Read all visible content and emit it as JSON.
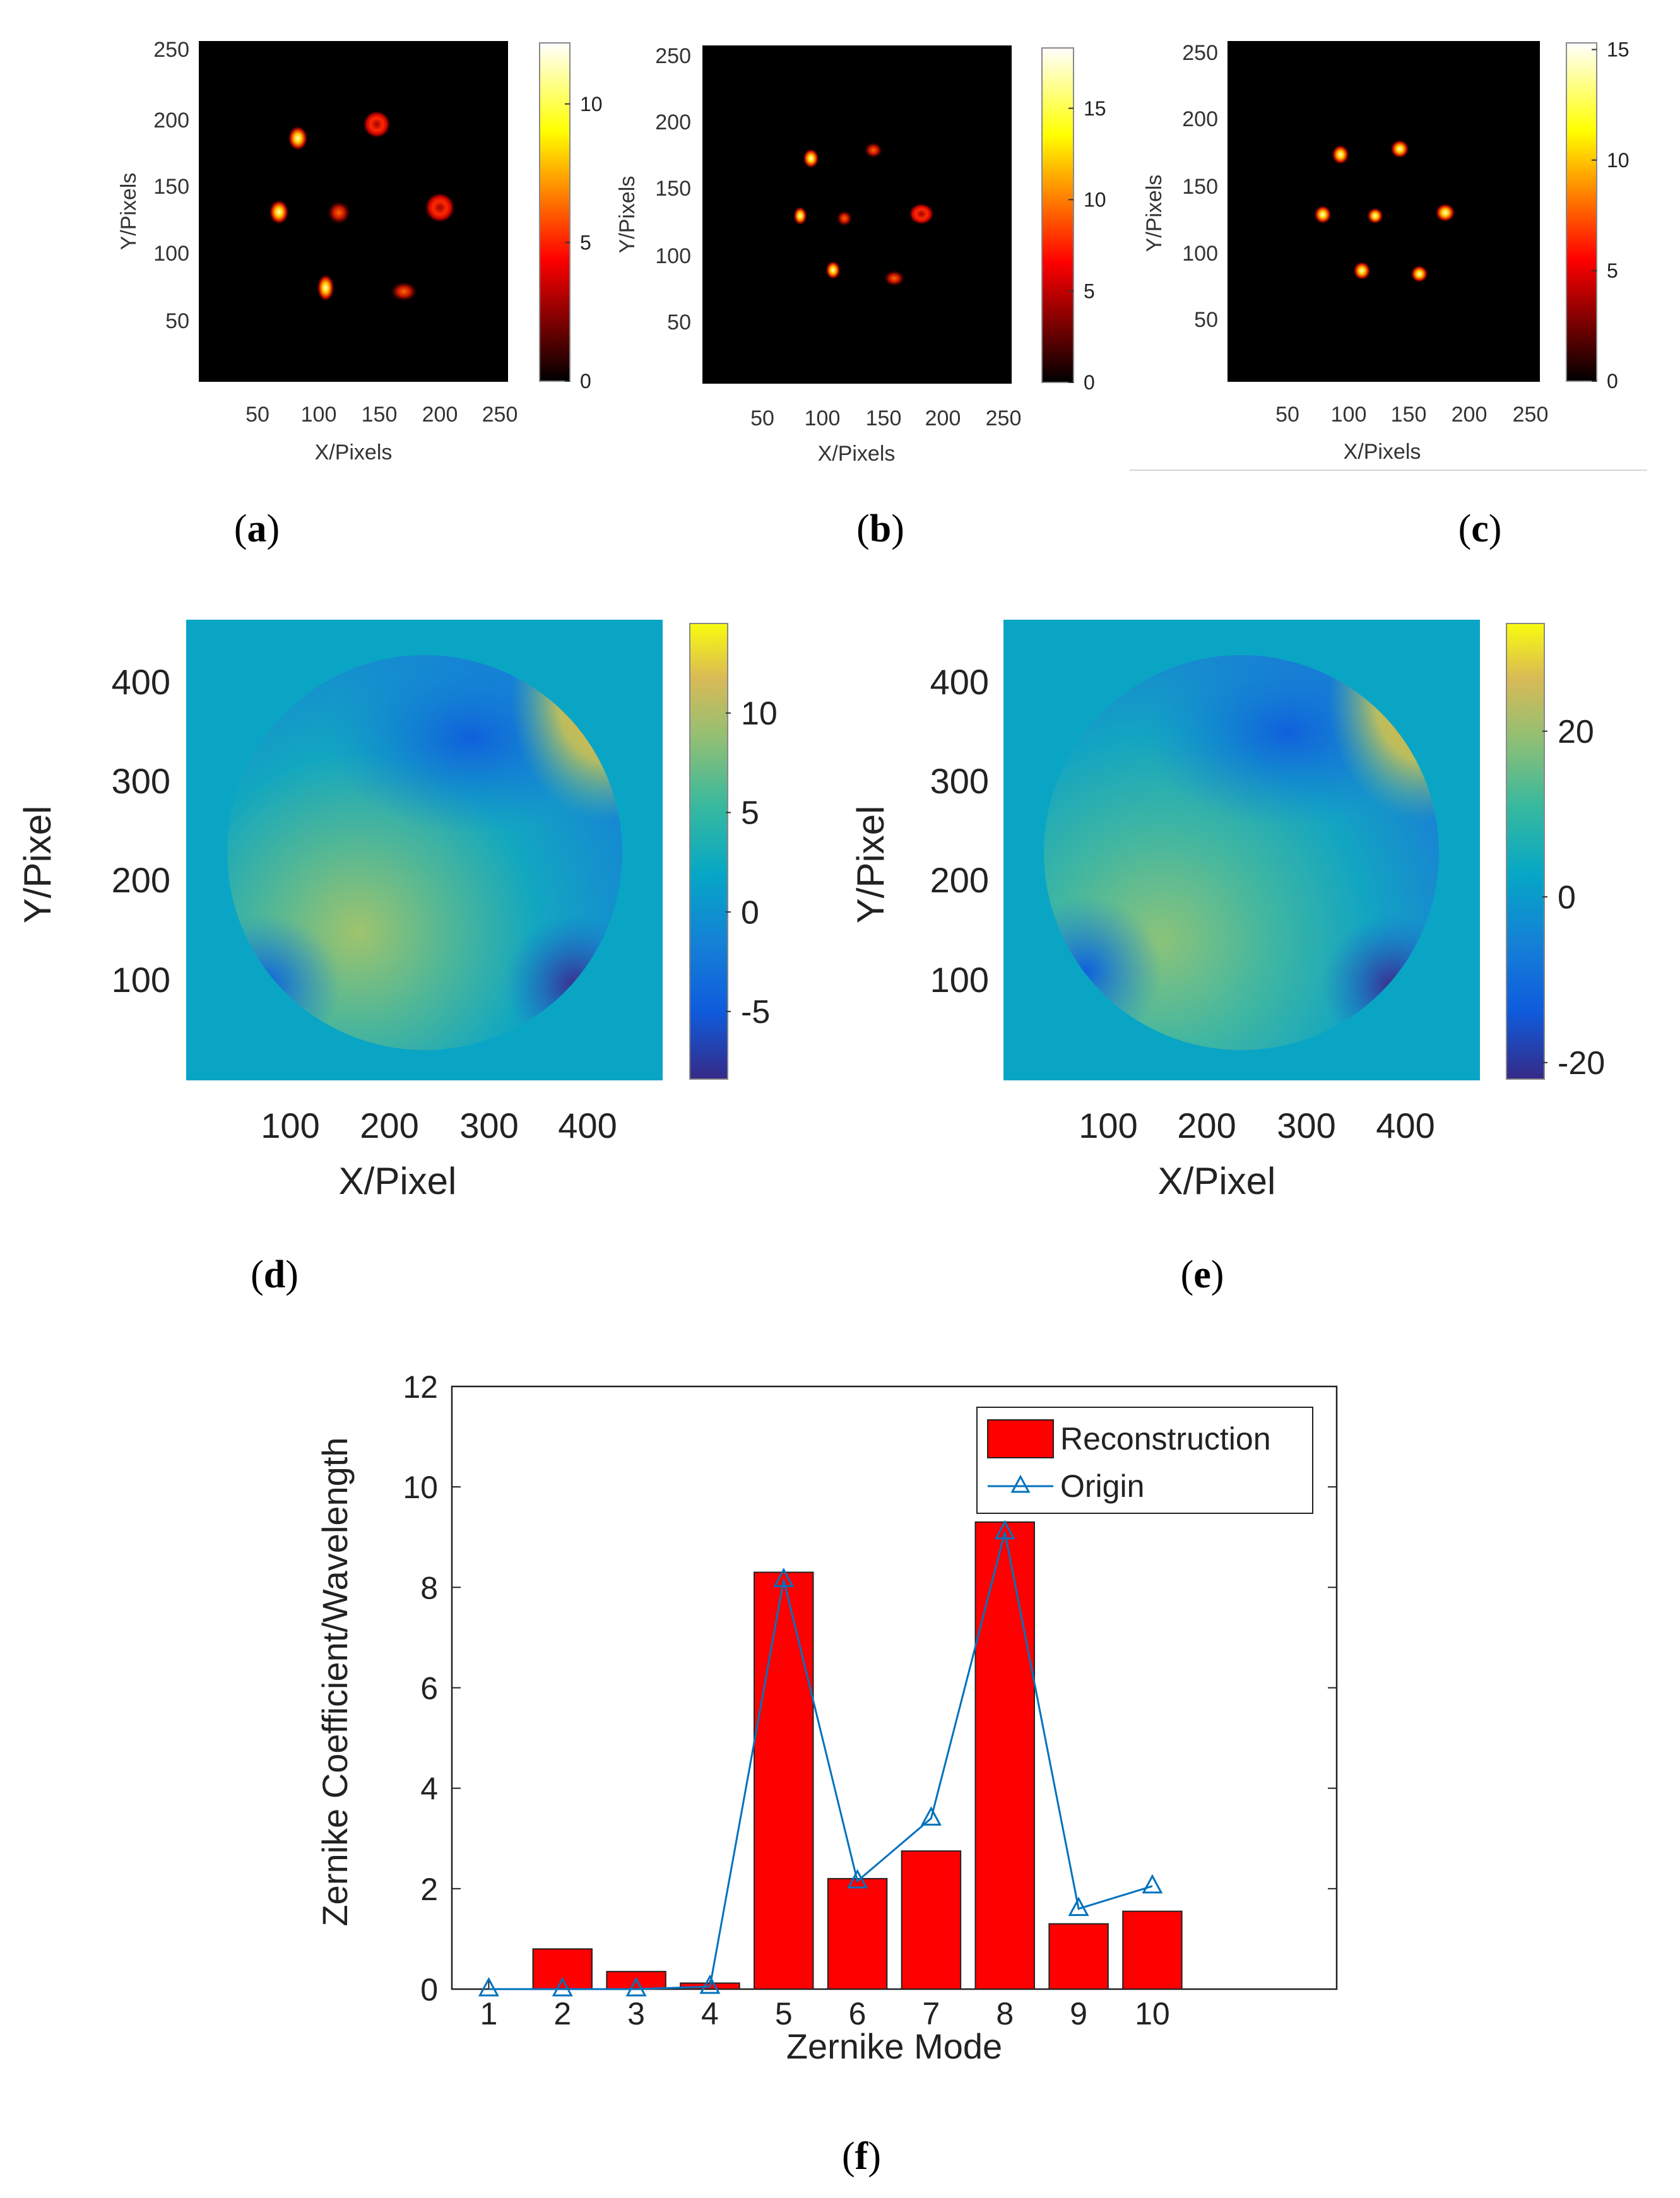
{
  "panels": {
    "a": {
      "label": "a"
    },
    "b": {
      "label": "b"
    },
    "c": {
      "label": "c"
    },
    "d": {
      "label": "d"
    },
    "e": {
      "label": "e"
    },
    "f": {
      "label": "f"
    }
  },
  "spot_maps": [
    {
      "id": "a",
      "xlabel": "X/Pixels",
      "ylabel": "Y/Pixels",
      "xticks": [
        "50",
        "100",
        "150",
        "200",
        "250"
      ],
      "yticks": [
        "50",
        "100",
        "150",
        "200",
        "250"
      ],
      "colorbar": {
        "ticks": [
          "0",
          "5",
          "10"
        ],
        "tick_values": [
          0,
          5,
          10
        ],
        "max": 12.2
      }
    },
    {
      "id": "b",
      "xlabel": "X/Pixels",
      "ylabel": "Y/Pixels",
      "xticks": [
        "50",
        "100",
        "150",
        "200",
        "250"
      ],
      "yticks": [
        "50",
        "100",
        "150",
        "200",
        "250"
      ],
      "colorbar": {
        "ticks": [
          "0",
          "5",
          "10",
          "15"
        ],
        "tick_values": [
          0,
          5,
          10,
          15
        ],
        "max": 18.3
      }
    },
    {
      "id": "c",
      "xlabel": "X/Pixels",
      "ylabel": "Y/Pixels",
      "xticks": [
        "50",
        "100",
        "150",
        "200",
        "250"
      ],
      "yticks": [
        "50",
        "100",
        "150",
        "200",
        "250"
      ],
      "colorbar": {
        "ticks": [
          "0",
          "5",
          "10",
          "15"
        ],
        "tick_values": [
          0,
          5,
          10,
          15
        ],
        "max": 15.3
      }
    }
  ],
  "wavefronts": [
    {
      "id": "d",
      "xlabel": "X/Pixel",
      "ylabel": "Y/Pixel",
      "xticks": [
        "100",
        "200",
        "300",
        "400"
      ],
      "yticks": [
        "100",
        "200",
        "300",
        "400"
      ],
      "colorbar": {
        "ticks": [
          "-5",
          "0",
          "5",
          "10"
        ],
        "tick_values": [
          -5,
          0,
          5,
          10
        ],
        "min": -8.4,
        "max": 14.5
      }
    },
    {
      "id": "e",
      "xlabel": "X/Pixel",
      "ylabel": "Y/Pixel",
      "xticks": [
        "100",
        "200",
        "300",
        "400"
      ],
      "yticks": [
        "100",
        "200",
        "300",
        "400"
      ],
      "colorbar": {
        "ticks": [
          "-20",
          "0",
          "20"
        ],
        "tick_values": [
          -20,
          0,
          20
        ],
        "min": -22,
        "max": 33
      }
    }
  ],
  "chart_data": {
    "type": "bar",
    "title": "",
    "xlabel": "Zernike Mode",
    "ylabel": "Zernike Coefficient/Wavelength",
    "categories": [
      "1",
      "2",
      "3",
      "4",
      "5",
      "6",
      "7",
      "8",
      "9",
      "10"
    ],
    "xlim": [
      -0.5,
      11.5
    ],
    "ylim": [
      0,
      12
    ],
    "yticks": [
      "0",
      "2",
      "4",
      "6",
      "8",
      "10",
      "12"
    ],
    "legend_position": "top-right",
    "series": [
      {
        "name": "Reconstruction",
        "style": "bar",
        "color": "#ff0000",
        "values": [
          0,
          0.8,
          0.35,
          0.12,
          8.3,
          2.2,
          2.75,
          9.3,
          1.3,
          1.55
        ]
      },
      {
        "name": "Origin",
        "style": "line-triangle",
        "color": "#0072bd",
        "values": [
          0,
          0,
          0,
          0.05,
          8.15,
          2.15,
          3.4,
          9.1,
          1.6,
          2.05
        ]
      }
    ]
  }
}
